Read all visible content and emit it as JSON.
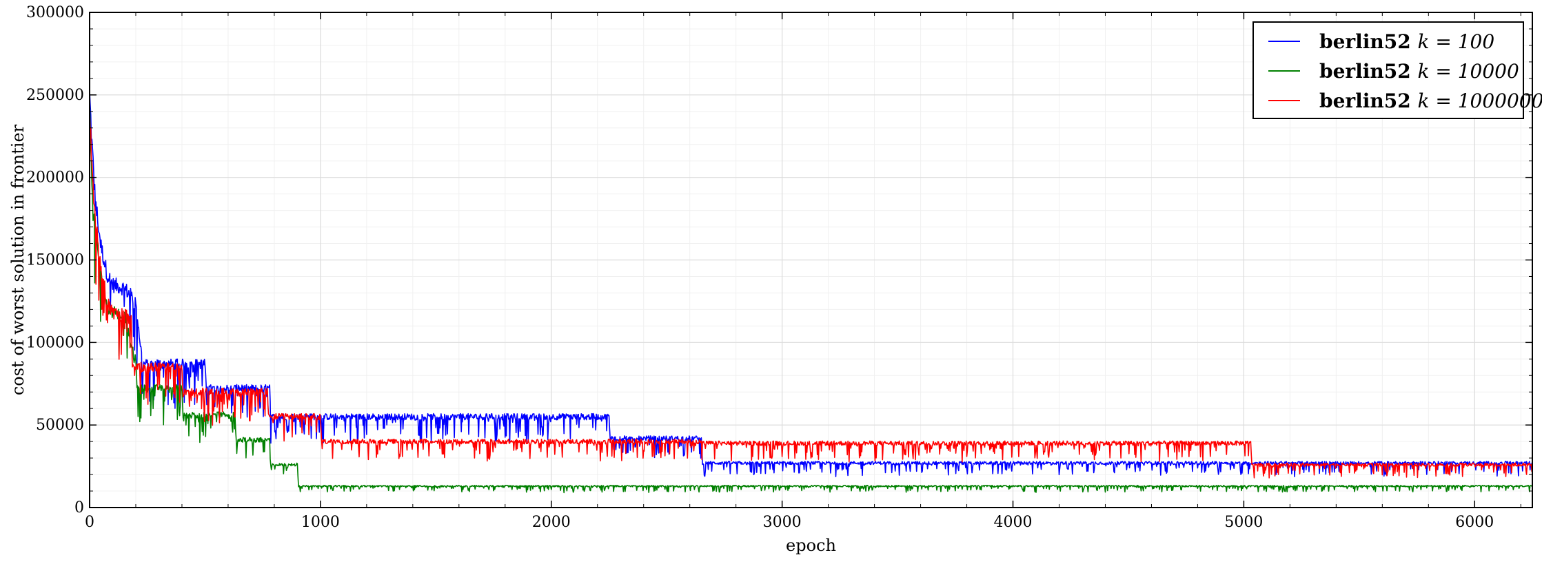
{
  "chart_data": {
    "type": "line",
    "title": "",
    "xlabel": "epoch",
    "ylabel": "cost of worst solution in frontier",
    "xlim": [
      0,
      6250
    ],
    "ylim": [
      0,
      300000
    ],
    "x_ticks": [
      0,
      1000,
      2000,
      3000,
      4000,
      5000,
      6000
    ],
    "x_tick_labels": [
      "0",
      "1000",
      "2000",
      "3000",
      "4000",
      "5000",
      "6000"
    ],
    "y_ticks": [
      0,
      50000,
      100000,
      150000,
      200000,
      250000,
      300000
    ],
    "y_tick_labels": [
      "0",
      "50000",
      "100000",
      "150000",
      "200000",
      "250000",
      "300000"
    ],
    "grid": true,
    "legend_position": "top-right",
    "series": [
      {
        "name": "berlin52 k = 100",
        "legend_prefix": "berlin52",
        "legend_math": "k = 100",
        "color": "#0000ff",
        "x": [
          0,
          10,
          25,
          50,
          75,
          100,
          150,
          200,
          215,
          230,
          500,
          505,
          780,
          785,
          1000,
          1005,
          2250,
          2255,
          2650,
          2655,
          5030,
          5035,
          6250
        ],
        "y": [
          250000,
          220000,
          185000,
          158000,
          142000,
          135000,
          133000,
          125000,
          105000,
          87000,
          87000,
          72000,
          72000,
          55000,
          55000,
          55000,
          55000,
          42000,
          42000,
          27000,
          27000,
          27000,
          27000
        ]
      },
      {
        "name": "berlin52 k = 10000",
        "legend_prefix": "berlin52",
        "legend_math": "k = 10000",
        "color": "#008000",
        "x": [
          0,
          10,
          25,
          50,
          75,
          100,
          160,
          175,
          200,
          205,
          400,
          405,
          630,
          635,
          780,
          785,
          900,
          905,
          6250
        ],
        "y": [
          240000,
          200000,
          165000,
          140000,
          122000,
          118000,
          115000,
          100000,
          90000,
          72000,
          72000,
          56000,
          56000,
          41000,
          41000,
          26000,
          26000,
          13000,
          13000
        ]
      },
      {
        "name": "berlin52 k = 1000000",
        "legend_prefix": "berlin52",
        "legend_math": "k = 1000000",
        "color": "#ff0000",
        "x": [
          0,
          10,
          25,
          50,
          75,
          100,
          180,
          185,
          400,
          405,
          770,
          775,
          1000,
          1005,
          2250,
          2255,
          2650,
          2655,
          5030,
          5035,
          6250
        ],
        "y": [
          245000,
          205000,
          175000,
          145000,
          125000,
          118000,
          115000,
          85000,
          85000,
          70000,
          70000,
          55000,
          55000,
          40000,
          40000,
          40000,
          40000,
          39000,
          39000,
          26000,
          26000
        ]
      }
    ]
  }
}
